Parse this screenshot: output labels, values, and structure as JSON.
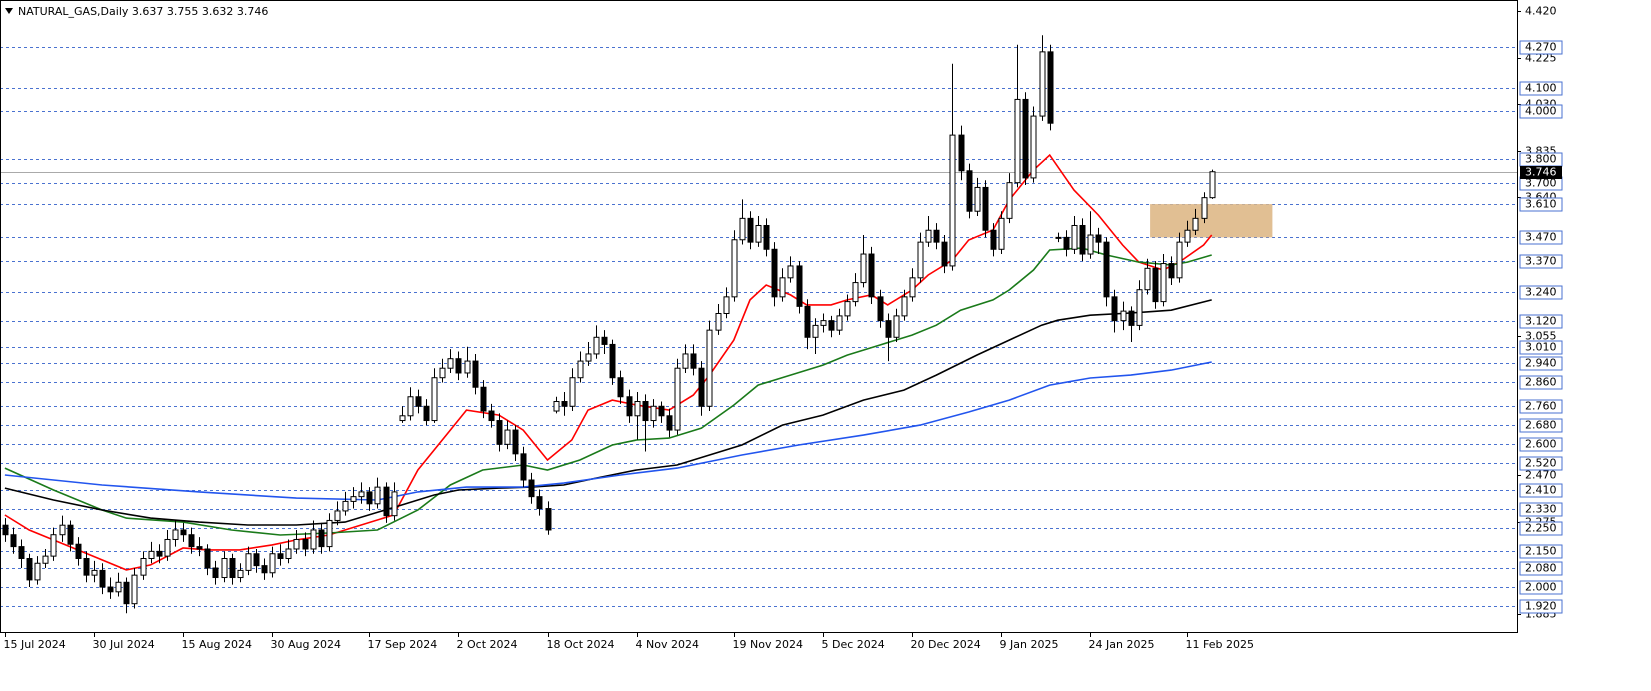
{
  "chart_data": {
    "type": "candlestick",
    "title": "NATURAL_GAS,Daily  3.637 3.755 3.632 3.746",
    "ylim": [
      1.811,
      4.468
    ],
    "xlim": [
      -0.6,
      186.7
    ],
    "bull_color": "#ffffff",
    "bear_color": "#000000",
    "level_color": "#4a72d0",
    "candles": [
      [
        2.26,
        2.29,
        2.19,
        2.22
      ],
      [
        2.22,
        2.25,
        2.14,
        2.17
      ],
      [
        2.17,
        2.2,
        2.08,
        2.12
      ],
      [
        2.12,
        2.14,
        2.0,
        2.03
      ],
      [
        2.03,
        2.13,
        2.01,
        2.1
      ],
      [
        2.1,
        2.16,
        2.08,
        2.13
      ],
      [
        2.13,
        2.25,
        2.11,
        2.22
      ],
      [
        2.22,
        2.3,
        2.19,
        2.26
      ],
      [
        2.26,
        2.28,
        2.15,
        2.18
      ],
      [
        2.18,
        2.21,
        2.09,
        2.12
      ],
      [
        2.12,
        2.15,
        2.02,
        2.05
      ],
      [
        2.05,
        2.11,
        2.02,
        2.07
      ],
      [
        2.07,
        2.1,
        1.97,
        2.0
      ],
      [
        2.0,
        2.04,
        1.95,
        1.98
      ],
      [
        1.98,
        2.06,
        1.96,
        2.02
      ],
      [
        2.02,
        2.04,
        1.89,
        1.93
      ],
      [
        1.93,
        2.08,
        1.91,
        2.05
      ],
      [
        2.05,
        2.15,
        2.03,
        2.12
      ],
      [
        2.12,
        2.19,
        2.1,
        2.15
      ],
      [
        2.15,
        2.18,
        2.1,
        2.13
      ],
      [
        2.13,
        2.24,
        2.11,
        2.2
      ],
      [
        2.2,
        2.28,
        2.17,
        2.24
      ],
      [
        2.24,
        2.27,
        2.19,
        2.22
      ],
      [
        2.22,
        2.25,
        2.14,
        2.17
      ],
      [
        2.17,
        2.21,
        2.13,
        2.16
      ],
      [
        2.16,
        2.18,
        2.05,
        2.08
      ],
      [
        2.08,
        2.11,
        2.01,
        2.04
      ],
      [
        2.04,
        2.15,
        2.02,
        2.12
      ],
      [
        2.12,
        2.14,
        2.01,
        2.04
      ],
      [
        2.04,
        2.1,
        2.02,
        2.07
      ],
      [
        2.07,
        2.17,
        2.05,
        2.14
      ],
      [
        2.14,
        2.16,
        2.06,
        2.09
      ],
      [
        2.09,
        2.12,
        2.03,
        2.06
      ],
      [
        2.06,
        2.17,
        2.04,
        2.14
      ],
      [
        2.14,
        2.18,
        2.09,
        2.12
      ],
      [
        2.12,
        2.2,
        2.1,
        2.16
      ],
      [
        2.16,
        2.24,
        2.14,
        2.2
      ],
      [
        2.2,
        2.23,
        2.13,
        2.16
      ],
      [
        2.16,
        2.28,
        2.14,
        2.24
      ],
      [
        2.24,
        2.27,
        2.14,
        2.17
      ],
      [
        2.17,
        2.31,
        2.15,
        2.28
      ],
      [
        2.28,
        2.36,
        2.26,
        2.32
      ],
      [
        2.32,
        2.4,
        2.3,
        2.36
      ],
      [
        2.36,
        2.42,
        2.33,
        2.38
      ],
      [
        2.38,
        2.44,
        2.35,
        2.4
      ],
      [
        2.4,
        2.42,
        2.32,
        2.35
      ],
      [
        2.35,
        2.46,
        2.33,
        2.42
      ],
      [
        2.42,
        2.44,
        2.27,
        2.3
      ],
      [
        2.3,
        2.44,
        2.28,
        2.4
      ],
      [
        2.7,
        2.76,
        2.69,
        2.72
      ],
      [
        2.72,
        2.84,
        2.7,
        2.8
      ],
      [
        2.8,
        2.83,
        2.73,
        2.76
      ],
      [
        2.76,
        2.79,
        2.68,
        2.7
      ],
      [
        2.7,
        2.92,
        2.69,
        2.88
      ],
      [
        2.88,
        2.96,
        2.86,
        2.92
      ],
      [
        2.92,
        3.0,
        2.9,
        2.96
      ],
      [
        2.96,
        2.99,
        2.87,
        2.9
      ],
      [
        2.9,
        3.01,
        2.88,
        2.95
      ],
      [
        2.95,
        2.98,
        2.81,
        2.84
      ],
      [
        2.84,
        2.87,
        2.71,
        2.74
      ],
      [
        2.74,
        2.77,
        2.67,
        2.7
      ],
      [
        2.7,
        2.73,
        2.57,
        2.6
      ],
      [
        2.6,
        2.7,
        2.58,
        2.66
      ],
      [
        2.66,
        2.68,
        2.53,
        2.56
      ],
      [
        2.56,
        2.59,
        2.42,
        2.45
      ],
      [
        2.45,
        2.48,
        2.35,
        2.38
      ],
      [
        2.38,
        2.41,
        2.3,
        2.33
      ],
      [
        2.33,
        2.36,
        2.22,
        2.24
      ],
      [
        2.74,
        2.8,
        2.73,
        2.78
      ],
      [
        2.78,
        2.82,
        2.72,
        2.76
      ],
      [
        2.76,
        2.92,
        2.74,
        2.88
      ],
      [
        2.88,
        2.99,
        2.86,
        2.95
      ],
      [
        2.95,
        3.03,
        2.93,
        2.98
      ],
      [
        2.98,
        3.1,
        2.96,
        3.05
      ],
      [
        3.05,
        3.08,
        2.98,
        3.02
      ],
      [
        3.02,
        3.04,
        2.85,
        2.88
      ],
      [
        2.88,
        2.91,
        2.77,
        2.8
      ],
      [
        2.8,
        2.83,
        2.69,
        2.72
      ],
      [
        2.72,
        2.82,
        2.62,
        2.78
      ],
      [
        2.78,
        2.81,
        2.57,
        2.7
      ],
      [
        2.7,
        2.79,
        2.67,
        2.76
      ],
      [
        2.76,
        2.78,
        2.69,
        2.72
      ],
      [
        2.72,
        2.75,
        2.63,
        2.66
      ],
      [
        2.66,
        2.96,
        2.64,
        2.92
      ],
      [
        2.92,
        3.02,
        2.9,
        2.98
      ],
      [
        2.98,
        3.02,
        2.89,
        2.92
      ],
      [
        2.92,
        2.95,
        2.72,
        2.76
      ],
      [
        2.76,
        3.12,
        2.74,
        3.08
      ],
      [
        3.08,
        3.19,
        3.06,
        3.15
      ],
      [
        3.15,
        3.26,
        3.13,
        3.22
      ],
      [
        3.22,
        3.5,
        3.2,
        3.46
      ],
      [
        3.46,
        3.63,
        3.44,
        3.55
      ],
      [
        3.55,
        3.58,
        3.42,
        3.45
      ],
      [
        3.45,
        3.56,
        3.43,
        3.52
      ],
      [
        3.52,
        3.55,
        3.39,
        3.42
      ],
      [
        3.42,
        3.45,
        3.18,
        3.22
      ],
      [
        3.22,
        3.34,
        3.2,
        3.3
      ],
      [
        3.3,
        3.39,
        3.28,
        3.35
      ],
      [
        3.35,
        3.37,
        3.15,
        3.18
      ],
      [
        3.18,
        3.21,
        3.0,
        3.05
      ],
      [
        3.05,
        3.13,
        2.98,
        3.1
      ],
      [
        3.1,
        3.15,
        3.07,
        3.12
      ],
      [
        3.12,
        3.14,
        3.05,
        3.08
      ],
      [
        3.08,
        3.17,
        3.06,
        3.14
      ],
      [
        3.14,
        3.23,
        3.12,
        3.2
      ],
      [
        3.2,
        3.32,
        3.18,
        3.28
      ],
      [
        3.28,
        3.48,
        3.26,
        3.4
      ],
      [
        3.4,
        3.43,
        3.19,
        3.22
      ],
      [
        3.22,
        3.25,
        3.09,
        3.12
      ],
      [
        3.12,
        3.15,
        2.95,
        3.05
      ],
      [
        3.05,
        3.17,
        3.03,
        3.14
      ],
      [
        3.14,
        3.25,
        3.12,
        3.22
      ],
      [
        3.22,
        3.34,
        3.2,
        3.3
      ],
      [
        3.3,
        3.49,
        3.28,
        3.45
      ],
      [
        3.45,
        3.56,
        3.43,
        3.5
      ],
      [
        3.5,
        3.53,
        3.42,
        3.45
      ],
      [
        3.45,
        3.48,
        3.32,
        3.35
      ],
      [
        3.35,
        4.2,
        3.33,
        3.9
      ],
      [
        3.9,
        3.94,
        3.71,
        3.75
      ],
      [
        3.75,
        3.78,
        3.55,
        3.58
      ],
      [
        3.58,
        3.72,
        3.56,
        3.68
      ],
      [
        3.68,
        3.71,
        3.47,
        3.5
      ],
      [
        3.5,
        3.53,
        3.39,
        3.42
      ],
      [
        3.42,
        3.58,
        3.4,
        3.55
      ],
      [
        3.55,
        3.74,
        3.53,
        3.7
      ],
      [
        3.7,
        4.28,
        3.68,
        4.05
      ],
      [
        4.05,
        4.08,
        3.69,
        3.72
      ],
      [
        3.72,
        4.02,
        3.7,
        3.98
      ],
      [
        3.98,
        4.32,
        3.96,
        4.25
      ],
      [
        4.25,
        4.28,
        3.92,
        3.95
      ],
      [
        3.47,
        3.49,
        3.45,
        3.47
      ],
      [
        3.47,
        3.5,
        3.39,
        3.42
      ],
      [
        3.42,
        3.56,
        3.4,
        3.52
      ],
      [
        3.52,
        3.55,
        3.37,
        3.4
      ],
      [
        3.4,
        3.58,
        3.38,
        3.48
      ],
      [
        3.48,
        3.51,
        3.4,
        3.45
      ],
      [
        3.45,
        3.47,
        3.18,
        3.22
      ],
      [
        3.22,
        3.25,
        3.07,
        3.12
      ],
      [
        3.12,
        3.2,
        3.08,
        3.16
      ],
      [
        3.16,
        3.18,
        3.03,
        3.1
      ],
      [
        3.1,
        3.29,
        3.08,
        3.25
      ],
      [
        3.25,
        3.38,
        3.23,
        3.34
      ],
      [
        3.34,
        3.37,
        3.17,
        3.2
      ],
      [
        3.2,
        3.4,
        3.18,
        3.36
      ],
      [
        3.36,
        3.39,
        3.27,
        3.3
      ],
      [
        3.3,
        3.49,
        3.28,
        3.45
      ],
      [
        3.45,
        3.54,
        3.43,
        3.5
      ],
      [
        3.5,
        3.59,
        3.48,
        3.55
      ],
      [
        3.55,
        3.66,
        3.53,
        3.637
      ],
      [
        3.637,
        3.755,
        3.632,
        3.746
      ]
    ],
    "series": [
      {
        "color": "#ff0000",
        "x": [
          0,
          3,
          9,
          15,
          18,
          22,
          25,
          29,
          33,
          36,
          40,
          44,
          48,
          51,
          55,
          57,
          61,
          64,
          67,
          70,
          72,
          75,
          78,
          82,
          85,
          87,
          90,
          92,
          94,
          97,
          99,
          102,
          104,
          107,
          109,
          112,
          114,
          117,
          119,
          122,
          124,
          127,
          129,
          132,
          135,
          138,
          140,
          143,
          145,
          148,
          149
        ],
        "values": [
          2.303,
          2.24,
          2.156,
          2.072,
          2.093,
          2.164,
          2.156,
          2.156,
          2.177,
          2.198,
          2.219,
          2.261,
          2.303,
          2.492,
          2.66,
          2.744,
          2.723,
          2.66,
          2.534,
          2.618,
          2.744,
          2.786,
          2.765,
          2.744,
          2.807,
          2.891,
          3.038,
          3.207,
          3.27,
          3.228,
          3.186,
          3.186,
          3.207,
          3.228,
          3.186,
          3.249,
          3.312,
          3.375,
          3.459,
          3.501,
          3.627,
          3.753,
          3.816,
          3.669,
          3.564,
          3.438,
          3.366,
          3.333,
          3.366,
          3.438,
          3.48
        ]
      },
      {
        "color": "#1a7a1a",
        "x": [
          0,
          6,
          12,
          15,
          22,
          28,
          34,
          40,
          46,
          51,
          55,
          59,
          64,
          67,
          71,
          75,
          78,
          82,
          86,
          90,
          93,
          97,
          101,
          104,
          108,
          112,
          115,
          118,
          122,
          124,
          127,
          129,
          133,
          136,
          140,
          144,
          146,
          149
        ],
        "values": [
          2.5,
          2.408,
          2.324,
          2.29,
          2.273,
          2.24,
          2.219,
          2.227,
          2.24,
          2.324,
          2.429,
          2.492,
          2.513,
          2.492,
          2.534,
          2.597,
          2.618,
          2.626,
          2.668,
          2.765,
          2.849,
          2.891,
          2.933,
          2.975,
          3.017,
          3.059,
          3.101,
          3.164,
          3.207,
          3.249,
          3.333,
          3.417,
          3.425,
          3.396,
          3.366,
          3.354,
          3.366,
          3.396
        ]
      },
      {
        "color": "#000000",
        "x": [
          0,
          6,
          12,
          18,
          24,
          30,
          36,
          42,
          49,
          53,
          56,
          61,
          65,
          69,
          73,
          78,
          83,
          87,
          91,
          96,
          101,
          106,
          111,
          115,
          120,
          124,
          128,
          130,
          134,
          139,
          144,
          149
        ],
        "values": [
          2.416,
          2.366,
          2.324,
          2.29,
          2.273,
          2.261,
          2.261,
          2.273,
          2.345,
          2.387,
          2.408,
          2.416,
          2.42,
          2.429,
          2.458,
          2.492,
          2.513,
          2.555,
          2.597,
          2.681,
          2.723,
          2.786,
          2.828,
          2.891,
          2.975,
          3.038,
          3.101,
          3.122,
          3.143,
          3.152,
          3.164,
          3.207
        ]
      },
      {
        "color": "#2255ee",
        "x": [
          0,
          12,
          24,
          36,
          46,
          51,
          57,
          64,
          69,
          76,
          83,
          91,
          98,
          106,
          113,
          119,
          124,
          129,
          134,
          139,
          144,
          149
        ],
        "values": [
          2.471,
          2.429,
          2.4,
          2.374,
          2.366,
          2.4,
          2.42,
          2.42,
          2.437,
          2.471,
          2.5,
          2.555,
          2.597,
          2.639,
          2.681,
          2.736,
          2.786,
          2.849,
          2.879,
          2.891,
          2.912,
          2.946
        ]
      }
    ],
    "zone": {
      "x": [
        141.4,
        156.5
      ],
      "y": [
        3.47,
        3.61
      ],
      "color": "#deb887"
    },
    "levels": [
      {
        "value": 4.27,
        "label": "4.270"
      },
      {
        "value": 4.1,
        "label": "4.100"
      },
      {
        "value": 4.0,
        "label": "4.000"
      },
      {
        "value": 3.8,
        "label": "3.800"
      },
      {
        "value": 3.7,
        "label": "3.700"
      },
      {
        "value": 3.61,
        "label": "3.610"
      },
      {
        "value": 3.47,
        "label": "3.470"
      },
      {
        "value": 3.37,
        "label": "3.370"
      },
      {
        "value": 3.24,
        "label": "3.240"
      },
      {
        "value": 3.12,
        "label": "3.120"
      },
      {
        "value": 3.01,
        "label": "3.010"
      },
      {
        "value": 2.94,
        "label": "2.940"
      },
      {
        "value": 2.86,
        "label": "2.860"
      },
      {
        "value": 2.76,
        "label": "2.760"
      },
      {
        "value": 2.68,
        "label": "2.680"
      },
      {
        "value": 2.6,
        "label": "2.600"
      },
      {
        "value": 2.52,
        "label": "2.520"
      },
      {
        "value": 2.41,
        "label": "2.410"
      },
      {
        "value": 2.33,
        "label": "2.330"
      },
      {
        "value": 2.25,
        "label": "2.250"
      },
      {
        "value": 2.15,
        "label": "2.150"
      },
      {
        "value": 2.08,
        "label": "2.080"
      },
      {
        "value": 2.0,
        "label": "2.000"
      },
      {
        "value": 1.92,
        "label": "1.920"
      }
    ],
    "last_price": {
      "value": 3.746,
      "label": "3.746"
    },
    "yticks": [
      {
        "value": 4.42,
        "label": "4.420"
      },
      {
        "value": 4.225,
        "label": "4.225"
      },
      {
        "value": 4.03,
        "label": "4.030"
      },
      {
        "value": 3.835,
        "label": "3.835"
      },
      {
        "value": 3.64,
        "label": "3.640"
      },
      {
        "value": 3.055,
        "label": "3.055"
      },
      {
        "value": 2.47,
        "label": "2.470"
      },
      {
        "value": 2.275,
        "label": "2.275"
      },
      {
        "value": 1.885,
        "label": "1.885"
      }
    ],
    "xticks": [
      {
        "value": 0,
        "label": "15 Jul 2024"
      },
      {
        "value": 11,
        "label": "30 Jul 2024"
      },
      {
        "value": 22,
        "label": "15 Aug 2024"
      },
      {
        "value": 33,
        "label": "30 Aug 2024"
      },
      {
        "value": 45,
        "label": "17 Sep 2024"
      },
      {
        "value": 56,
        "label": "2 Oct 2024"
      },
      {
        "value": 67,
        "label": "18 Oct 2024"
      },
      {
        "value": 78,
        "label": "4 Nov 2024"
      },
      {
        "value": 90,
        "label": "19 Nov 2024"
      },
      {
        "value": 101,
        "label": "5 Dec 2024"
      },
      {
        "value": 112,
        "label": "20 Dec 2024"
      },
      {
        "value": 123,
        "label": "9 Jan 2025"
      },
      {
        "value": 134,
        "label": "24 Jan 2025"
      },
      {
        "value": 146,
        "label": "11 Feb 2025"
      }
    ]
  }
}
